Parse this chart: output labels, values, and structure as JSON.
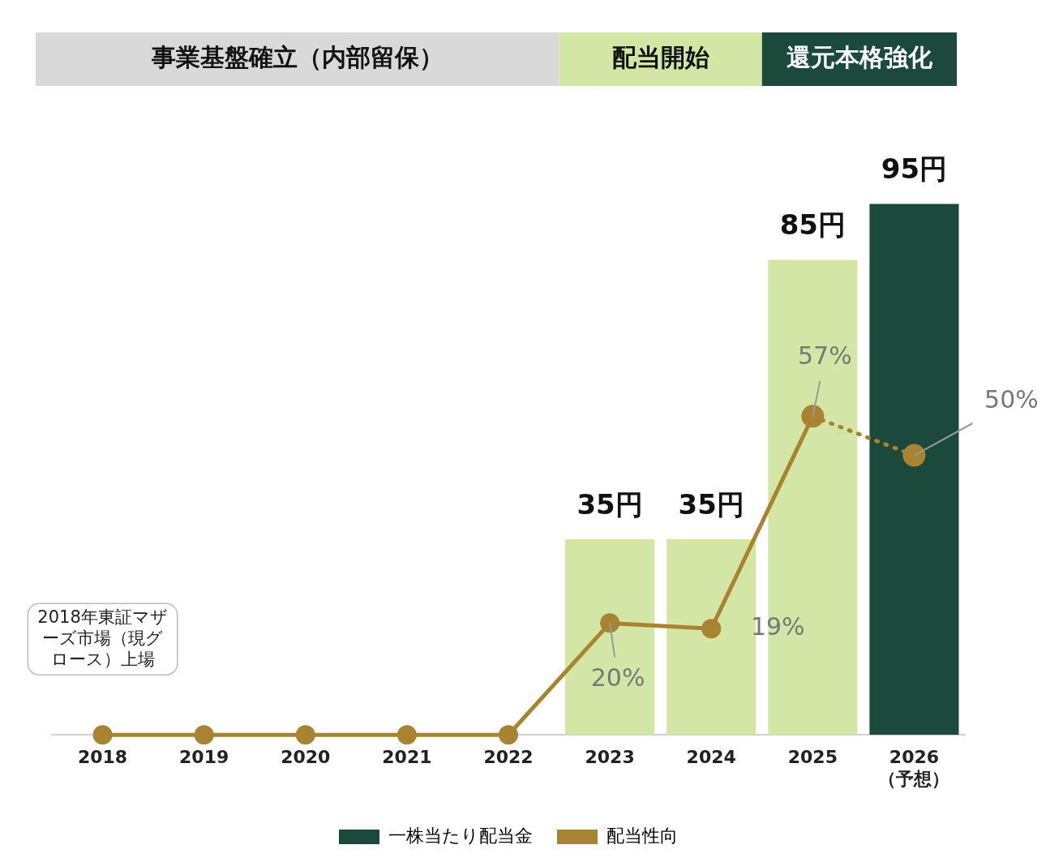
{
  "chart_data": {
    "type": "bar",
    "categories": [
      "2018",
      "2019",
      "2020",
      "2021",
      "2022",
      "2023",
      "2024",
      "2025",
      "2026\n（予想）"
    ],
    "tick_labels": "x",
    "grid": false,
    "legend": "bottom",
    "series": [
      {
        "name": "一株当たり配当金",
        "color": "#1b4a3c",
        "colors": [
          "#d4e6a5",
          "#d4e6a5",
          "#d4e6a5",
          "#d4e6a5",
          "#d4e6a5",
          "#d4e6a5",
          "#d4e6a5",
          "#d4e6a5",
          "#1b4a3c"
        ],
        "values": [
          0,
          0,
          0,
          0,
          0,
          35,
          35,
          85,
          95
        ],
        "value_labels": [
          null,
          null,
          null,
          null,
          null,
          "35円",
          "35円",
          "85円",
          "95円"
        ]
      },
      {
        "name": "配当性向",
        "type": "line",
        "color": "#a88432",
        "marker": "circle",
        "line_style": "solid",
        "values": [
          0,
          0,
          0,
          0,
          0,
          20,
          19,
          57,
          null
        ],
        "value_labels": [
          null,
          null,
          null,
          null,
          null,
          "20%",
          "19%",
          "57%",
          null
        ]
      },
      {
        "type": "line",
        "color": "#a88432",
        "marker": "circle",
        "line_style": "dotted",
        "values": [
          null,
          null,
          null,
          null,
          null,
          null,
          null,
          57,
          50
        ],
        "value_labels": [
          null,
          null,
          null,
          null,
          null,
          null,
          null,
          null,
          "50%"
        ]
      }
    ],
    "annotations": [
      "事業基盤確立（内部留保）",
      "配当開始",
      "還元本格強化",
      "2018年東証マザーズ市場（現グロース）上場"
    ]
  }
}
